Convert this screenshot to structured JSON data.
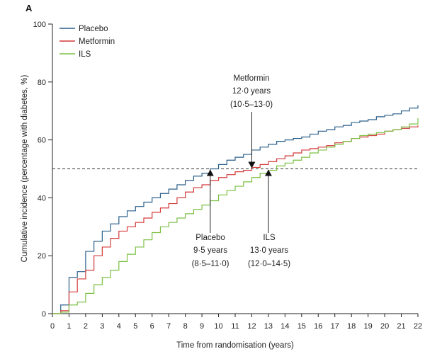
{
  "chart_data": {
    "type": "line",
    "panel_label": "A",
    "title": "",
    "xlabel": "Time from randomisation (years)",
    "ylabel": "Cumulative incidence (percentage with diabetes, %)",
    "xlim": [
      0,
      22
    ],
    "ylim": [
      0,
      100
    ],
    "xticks": [
      "0",
      "1",
      "2",
      "3",
      "4",
      "5",
      "6",
      "7",
      "8",
      "9",
      "10",
      "11",
      "12",
      "13",
      "14",
      "15",
      "16",
      "17",
      "18",
      "19",
      "20",
      "21",
      "22"
    ],
    "yticks": [
      "0",
      "20",
      "40",
      "60",
      "80",
      "100"
    ],
    "reference_line": {
      "y": 50,
      "style": "dashed"
    },
    "legend": {
      "placement": "top-left",
      "entries": [
        "Placebo",
        "Metformin",
        "ILS"
      ]
    },
    "series": [
      {
        "name": "Placebo",
        "color": "#2b5f8a",
        "x": [
          0.5,
          1,
          1.5,
          2,
          2.5,
          3,
          3.5,
          4,
          4.5,
          5,
          5.5,
          6,
          6.5,
          7,
          7.5,
          8,
          8.5,
          9,
          9.5,
          10,
          10.5,
          11,
          11.5,
          12,
          12.5,
          13,
          13.5,
          14,
          14.5,
          15,
          15.5,
          16,
          16.5,
          17,
          17.5,
          18,
          18.5,
          19,
          19.5,
          20,
          20.5,
          21,
          21.5,
          22
        ],
        "y": [
          3,
          12.5,
          14.5,
          21.5,
          25,
          28.5,
          31,
          33.5,
          35.5,
          37,
          38.5,
          40,
          41.5,
          43,
          44.5,
          46,
          47.5,
          48.5,
          50,
          51.5,
          53,
          54,
          55,
          56.5,
          57.5,
          58.5,
          59.5,
          60,
          60.5,
          61,
          62,
          63,
          63.5,
          64.5,
          65,
          66,
          66.5,
          67,
          68,
          68.5,
          69,
          70,
          71,
          72
        ]
      },
      {
        "name": "Metformin",
        "color": "#d43a3a",
        "x": [
          0.5,
          1,
          1.5,
          2,
          2.5,
          3,
          3.5,
          4,
          4.5,
          5,
          5.5,
          6,
          6.5,
          7,
          7.5,
          8,
          8.5,
          9,
          9.5,
          10,
          10.5,
          11,
          11.5,
          12,
          12.5,
          13,
          13.5,
          14,
          14.5,
          15,
          15.5,
          16,
          16.5,
          17,
          17.5,
          18,
          18.5,
          19,
          19.5,
          20,
          20.5,
          21,
          21.5,
          22
        ],
        "y": [
          1,
          7.5,
          12,
          15,
          20,
          23,
          26,
          28.5,
          30,
          31.5,
          33,
          35,
          36.5,
          38,
          40,
          42,
          43.5,
          44.5,
          46,
          47,
          48,
          49,
          49.5,
          50.5,
          51.5,
          52.5,
          53.5,
          54.5,
          55.5,
          56.5,
          57,
          57.5,
          58,
          59,
          59.5,
          60.5,
          61,
          61.5,
          62,
          63,
          63.5,
          64,
          64.5,
          65
        ]
      },
      {
        "name": "ILS",
        "color": "#7cc043",
        "x": [
          0.5,
          1,
          1.5,
          2,
          2.5,
          3,
          3.5,
          4,
          4.5,
          5,
          5.5,
          6,
          6.5,
          7,
          7.5,
          8,
          8.5,
          9,
          9.5,
          10,
          10.5,
          11,
          11.5,
          12,
          12.5,
          13,
          13.5,
          14,
          14.5,
          15,
          15.5,
          16,
          16.5,
          17,
          17.5,
          18,
          18.5,
          19,
          19.5,
          20,
          20.5,
          21,
          21.5,
          22
        ],
        "y": [
          0.5,
          3,
          4,
          7,
          10,
          12.5,
          15,
          18,
          20.5,
          23,
          25.5,
          28,
          30,
          31.5,
          33,
          34.5,
          36,
          37.5,
          39,
          41,
          42.5,
          44,
          45.5,
          47,
          48.5,
          49.5,
          51,
          52,
          53,
          54,
          55.5,
          56.5,
          57.5,
          58.5,
          59.5,
          60.5,
          61.5,
          62,
          62.5,
          63,
          63.5,
          64.5,
          65.5,
          67.5
        ]
      }
    ],
    "annotations": [
      {
        "name": "placebo",
        "x": 9.5,
        "y": 50,
        "direction": "up",
        "label": "Placebo",
        "median": "9·5 years",
        "ci": "(8·5–11·0)"
      },
      {
        "name": "metformin",
        "x": 12.0,
        "y": 50,
        "direction": "down",
        "label": "Metformin",
        "median": "12·0 years",
        "ci": "(10·5–13·0)"
      },
      {
        "name": "ils",
        "x": 13.0,
        "y": 50,
        "direction": "up",
        "label": "ILS",
        "median": "13·0 years",
        "ci": "(12·0–14·5)"
      }
    ]
  }
}
